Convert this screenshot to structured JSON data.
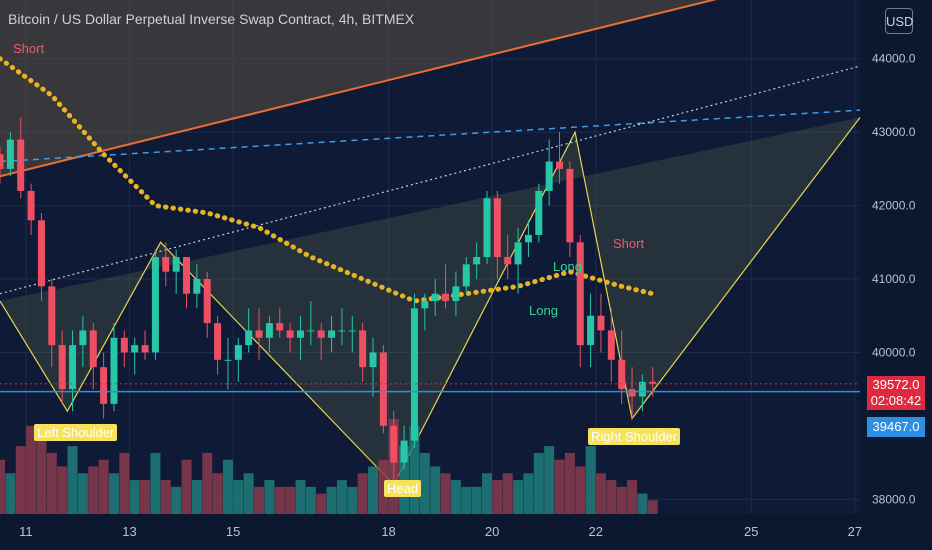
{
  "title": "Bitcoin / US Dollar Perpetual Inverse Swap Contract, 4h, BITMEX",
  "currency_button": "USD",
  "price_tags": {
    "last_price": "39572.0",
    "countdown": "02:08:42",
    "line_price": "39467.0"
  },
  "labels": {
    "short_1": "Short",
    "short_2": "Short",
    "long_1": "Long",
    "long_2": "Long",
    "left_shoulder": "Left Shoulder",
    "right_shoulder": "Right Shoulder",
    "head": "Head"
  },
  "colors": {
    "background": "#0f1b36",
    "up": "#26c6a6",
    "down": "#ef4f63",
    "pattern": "#e8d44d",
    "ema": "#e6b422",
    "trend": "#e76f34",
    "hline": "#2d8fe3"
  },
  "chart_data": {
    "type": "candlestick",
    "title": "Bitcoin / US Dollar Perpetual Inverse Swap Contract, 4h, BITMEX",
    "y_ticks": [
      44000,
      43000,
      42000,
      41000,
      40000,
      38000
    ],
    "y_tick_labels": [
      "44000.0",
      "43000.0",
      "42000.0",
      "41000.0",
      "40000.0",
      "38000.0"
    ],
    "x_ticks": [
      11,
      13,
      15,
      18,
      20,
      22,
      25,
      27
    ],
    "x_tick_labels": [
      "11",
      "13",
      "15",
      "18",
      "20",
      "22",
      "25",
      "27"
    ],
    "ylim": [
      37800,
      44800
    ],
    "xlim": [
      10.5,
      27.1
    ],
    "last_price": 39572,
    "horizontal_line": 39467,
    "pattern": "head-and-shoulders",
    "pattern_points": [
      [
        10.5,
        40700
      ],
      [
        11.8,
        39200
      ],
      [
        13.6,
        41500
      ],
      [
        18.1,
        38200
      ],
      [
        21.6,
        43000
      ],
      [
        22.7,
        39100
      ],
      [
        27.1,
        43200
      ]
    ],
    "trend_line": [
      [
        10.5,
        42400
      ],
      [
        25.4,
        45000
      ]
    ],
    "dashed_line": [
      [
        10.5,
        42600
      ],
      [
        27.1,
        43300
      ]
    ],
    "dotted_line": [
      [
        10.5,
        40800
      ],
      [
        27.1,
        43900
      ]
    ],
    "ema": [
      [
        10.5,
        44000
      ],
      [
        11.5,
        43500
      ],
      [
        12.5,
        42700
      ],
      [
        13.5,
        42000
      ],
      [
        14.5,
        41900
      ],
      [
        15.5,
        41700
      ],
      [
        16.5,
        41300
      ],
      [
        17.5,
        41000
      ],
      [
        18.5,
        40700
      ],
      [
        19.5,
        40800
      ],
      [
        20.5,
        40900
      ],
      [
        21.5,
        41100
      ],
      [
        22.5,
        40900
      ],
      [
        23.1,
        40800
      ]
    ],
    "candles": [
      [
        10.5,
        42700,
        42800,
        42300,
        42500
      ],
      [
        10.7,
        42500,
        43000,
        42400,
        42900
      ],
      [
        10.9,
        42900,
        43200,
        42100,
        42200
      ],
      [
        11.1,
        42200,
        42300,
        41600,
        41800
      ],
      [
        11.3,
        41800,
        41900,
        40700,
        40900
      ],
      [
        11.5,
        40900,
        41000,
        39800,
        40100
      ],
      [
        11.7,
        40100,
        40300,
        39300,
        39500
      ],
      [
        11.9,
        39500,
        40300,
        39200,
        40100
      ],
      [
        12.1,
        40100,
        40500,
        39800,
        40300
      ],
      [
        12.3,
        40300,
        40400,
        39500,
        39800
      ],
      [
        12.5,
        39800,
        40000,
        39100,
        39300
      ],
      [
        12.7,
        39300,
        40400,
        39200,
        40200
      ],
      [
        12.9,
        40200,
        40300,
        39800,
        40000
      ],
      [
        13.1,
        40000,
        40200,
        39700,
        40100
      ],
      [
        13.3,
        40100,
        40300,
        39900,
        40000
      ],
      [
        13.5,
        40000,
        41400,
        39900,
        41300
      ],
      [
        13.7,
        41300,
        41500,
        40900,
        41100
      ],
      [
        13.9,
        41100,
        41400,
        40800,
        41300
      ],
      [
        14.1,
        41300,
        41300,
        40600,
        40800
      ],
      [
        14.3,
        40800,
        41200,
        40600,
        41000
      ],
      [
        14.5,
        41000,
        41100,
        40200,
        40400
      ],
      [
        14.7,
        40400,
        40500,
        39700,
        39900
      ],
      [
        14.9,
        39900,
        40200,
        39500,
        39900
      ],
      [
        15.1,
        39900,
        40200,
        39600,
        40100
      ],
      [
        15.3,
        40100,
        40600,
        40000,
        40300
      ],
      [
        15.5,
        40300,
        40600,
        39900,
        40200
      ],
      [
        15.7,
        40200,
        40500,
        40000,
        40400
      ],
      [
        15.9,
        40400,
        40600,
        40200,
        40300
      ],
      [
        16.1,
        40300,
        40400,
        40000,
        40200
      ],
      [
        16.3,
        40200,
        40500,
        39900,
        40300
      ],
      [
        16.5,
        40300,
        40700,
        40100,
        40300
      ],
      [
        16.7,
        40300,
        40400,
        39900,
        40200
      ],
      [
        16.9,
        40200,
        40500,
        40000,
        40300
      ],
      [
        17.1,
        40300,
        40600,
        40100,
        40300
      ],
      [
        17.3,
        40300,
        40500,
        40000,
        40300
      ],
      [
        17.5,
        40300,
        40400,
        39600,
        39800
      ],
      [
        17.7,
        39800,
        40200,
        39400,
        40000
      ],
      [
        17.9,
        40000,
        40100,
        38900,
        39000
      ],
      [
        18.1,
        39000,
        39200,
        38200,
        38500
      ],
      [
        18.3,
        38500,
        39000,
        38400,
        38800
      ],
      [
        18.5,
        38800,
        40800,
        38700,
        40600
      ],
      [
        18.7,
        40600,
        40800,
        40300,
        40700
      ],
      [
        18.9,
        40700,
        41000,
        40500,
        40800
      ],
      [
        19.1,
        40800,
        41200,
        40600,
        40700
      ],
      [
        19.3,
        40700,
        41100,
        40500,
        40900
      ],
      [
        19.5,
        40900,
        41300,
        40800,
        41200
      ],
      [
        19.7,
        41200,
        41500,
        41000,
        41300
      ],
      [
        19.9,
        41300,
        42200,
        41200,
        42100
      ],
      [
        20.1,
        42100,
        42200,
        41000,
        41300
      ],
      [
        20.3,
        41300,
        41600,
        41000,
        41200
      ],
      [
        20.5,
        41200,
        41700,
        40800,
        41500
      ],
      [
        20.7,
        41500,
        41800,
        41300,
        41600
      ],
      [
        20.9,
        41600,
        42300,
        41500,
        42200
      ],
      [
        21.1,
        42200,
        42900,
        42000,
        42600
      ],
      [
        21.3,
        42600,
        43000,
        42300,
        42500
      ],
      [
        21.5,
        42500,
        42600,
        41300,
        41500
      ],
      [
        21.7,
        41500,
        41600,
        39800,
        40100
      ],
      [
        21.9,
        40100,
        40800,
        39800,
        40500
      ],
      [
        22.1,
        40500,
        40800,
        40000,
        40300
      ],
      [
        22.3,
        40300,
        40600,
        39600,
        39900
      ],
      [
        22.5,
        39900,
        40300,
        39300,
        39500
      ],
      [
        22.7,
        39500,
        39800,
        39100,
        39400
      ],
      [
        22.9,
        39400,
        39700,
        39200,
        39600
      ],
      [
        23.1,
        39600,
        39800,
        39400,
        39572
      ]
    ],
    "volume": [
      8,
      6,
      10,
      13,
      12,
      9,
      7,
      10,
      6,
      7,
      8,
      6,
      9,
      5,
      5,
      9,
      5,
      4,
      8,
      5,
      9,
      6,
      8,
      5,
      6,
      4,
      5,
      4,
      4,
      5,
      4,
      3,
      4,
      5,
      4,
      6,
      7,
      8,
      14,
      10,
      13,
      9,
      7,
      6,
      5,
      4,
      4,
      6,
      5,
      6,
      5,
      6,
      9,
      10,
      8,
      9,
      7,
      10,
      6,
      5,
      4,
      5,
      3,
      2
    ]
  }
}
